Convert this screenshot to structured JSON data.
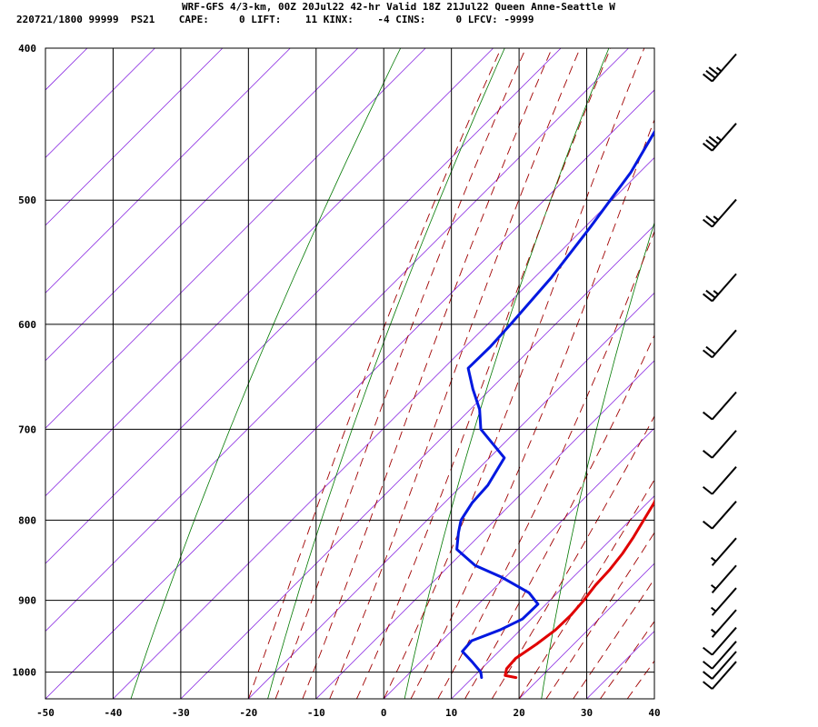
{
  "header": {
    "line1": "WRF-GFS 4/3-km, 00Z 20Jul22 42-hr Valid 18Z 21Jul22 Queen Anne-Seattle W",
    "line2": "220721/1800 99999  PS21    CAPE:     0 LIFT:    11 KINX:    -4 CINS:     0 LFCV: -9999"
  },
  "chart_data": {
    "type": "skew-t",
    "title": "WRF-GFS 4/3-km, 00Z 20Jul22 42-hr Valid 18Z 21Jul22 Queen Anne-Seattle W",
    "x_axis": {
      "label": "",
      "range": [
        -50,
        40
      ],
      "ticks": [
        -50,
        -40,
        -30,
        -20,
        -10,
        0,
        10,
        20,
        30,
        40
      ]
    },
    "y_axis": {
      "label": "",
      "range": [
        1040,
        400
      ],
      "scale": "log",
      "ticks": [
        400,
        500,
        600,
        700,
        800,
        900,
        1000
      ]
    },
    "grid": true,
    "skew_x": "45 degrees (isotherms tilted to the right with height)",
    "colors": {
      "temperature": "#e00000",
      "dewpoint": "#0018e0",
      "isotherms": "#8a2be2",
      "dry_adiabats": "#007800",
      "moist_adiabats": "#a00000",
      "grid": "#000000"
    },
    "series": [
      {
        "key": "temperature",
        "points": [
          {
            "p": 1008,
            "t": 16.4
          },
          {
            "p": 1005,
            "t": 14.5
          },
          {
            "p": 995,
            "t": 13.7
          },
          {
            "p": 980,
            "t": 13.5
          },
          {
            "p": 960,
            "t": 14.5
          },
          {
            "p": 940,
            "t": 15.2
          },
          {
            "p": 920,
            "t": 15.3
          },
          {
            "p": 900,
            "t": 15.0
          },
          {
            "p": 880,
            "t": 14.5
          },
          {
            "p": 860,
            "t": 14.3
          },
          {
            "p": 840,
            "t": 13.8
          },
          {
            "p": 820,
            "t": 13.0
          },
          {
            "p": 800,
            "t": 12.0
          },
          {
            "p": 780,
            "t": 11.0
          },
          {
            "p": 760,
            "t": 9.4
          },
          {
            "p": 740,
            "t": 8.0
          },
          {
            "p": 720,
            "t": 6.6
          },
          {
            "p": 700,
            "t": 5.2
          },
          {
            "p": 680,
            "t": 3.9
          },
          {
            "p": 660,
            "t": 2.7
          },
          {
            "p": 640,
            "t": 1.7
          },
          {
            "p": 620,
            "t": 0.5
          },
          {
            "p": 600,
            "t": -1.6
          },
          {
            "p": 580,
            "t": -3.6
          },
          {
            "p": 560,
            "t": -5.6
          },
          {
            "p": 540,
            "t": -7.8
          },
          {
            "p": 520,
            "t": -10.2
          },
          {
            "p": 500,
            "t": -12.6
          },
          {
            "p": 480,
            "t": -15.2
          },
          {
            "p": 460,
            "t": -18.0
          },
          {
            "p": 440,
            "t": -21.2
          },
          {
            "p": 420,
            "t": -24.6
          }
        ]
      },
      {
        "key": "dewpoint",
        "points": [
          {
            "p": 1008,
            "t": 11.3
          },
          {
            "p": 1000,
            "t": 10.4
          },
          {
            "p": 985,
            "t": 7.6
          },
          {
            "p": 970,
            "t": 4.6
          },
          {
            "p": 955,
            "t": 4.4
          },
          {
            "p": 940,
            "t": 7.0
          },
          {
            "p": 925,
            "t": 8.7
          },
          {
            "p": 905,
            "t": 8.8
          },
          {
            "p": 890,
            "t": 5.8
          },
          {
            "p": 870,
            "t": -0.5
          },
          {
            "p": 855,
            "t": -6.2
          },
          {
            "p": 835,
            "t": -11.3
          },
          {
            "p": 815,
            "t": -13.5
          },
          {
            "p": 800,
            "t": -15.0
          },
          {
            "p": 780,
            "t": -15.9
          },
          {
            "p": 760,
            "t": -16.2
          },
          {
            "p": 730,
            "t": -17.8
          },
          {
            "p": 700,
            "t": -25.5
          },
          {
            "p": 680,
            "t": -28.6
          },
          {
            "p": 660,
            "t": -32.6
          },
          {
            "p": 640,
            "t": -36.4
          },
          {
            "p": 620,
            "t": -36.3
          },
          {
            "p": 600,
            "t": -36.6
          },
          {
            "p": 560,
            "t": -37.5
          },
          {
            "p": 520,
            "t": -39.2
          },
          {
            "p": 480,
            "t": -41.3
          },
          {
            "p": 450,
            "t": -44.0
          },
          {
            "p": 420,
            "t": -47.0
          }
        ]
      }
    ],
    "wind_barbs": [
      {
        "p": 420,
        "speed_kt": 35
      },
      {
        "p": 465,
        "speed_kt": 35
      },
      {
        "p": 520,
        "speed_kt": 25
      },
      {
        "p": 580,
        "speed_kt": 25
      },
      {
        "p": 630,
        "speed_kt": 20
      },
      {
        "p": 690,
        "speed_kt": 10
      },
      {
        "p": 730,
        "speed_kt": 10
      },
      {
        "p": 770,
        "speed_kt": 10
      },
      {
        "p": 810,
        "speed_kt": 10
      },
      {
        "p": 855,
        "speed_kt": 5
      },
      {
        "p": 890,
        "speed_kt": 5
      },
      {
        "p": 920,
        "speed_kt": 5
      },
      {
        "p": 950,
        "speed_kt": 5
      },
      {
        "p": 975,
        "speed_kt": 10
      },
      {
        "p": 995,
        "speed_kt": 10
      },
      {
        "p": 1010,
        "speed_kt": 10
      },
      {
        "p": 1025,
        "speed_kt": 10
      }
    ]
  }
}
